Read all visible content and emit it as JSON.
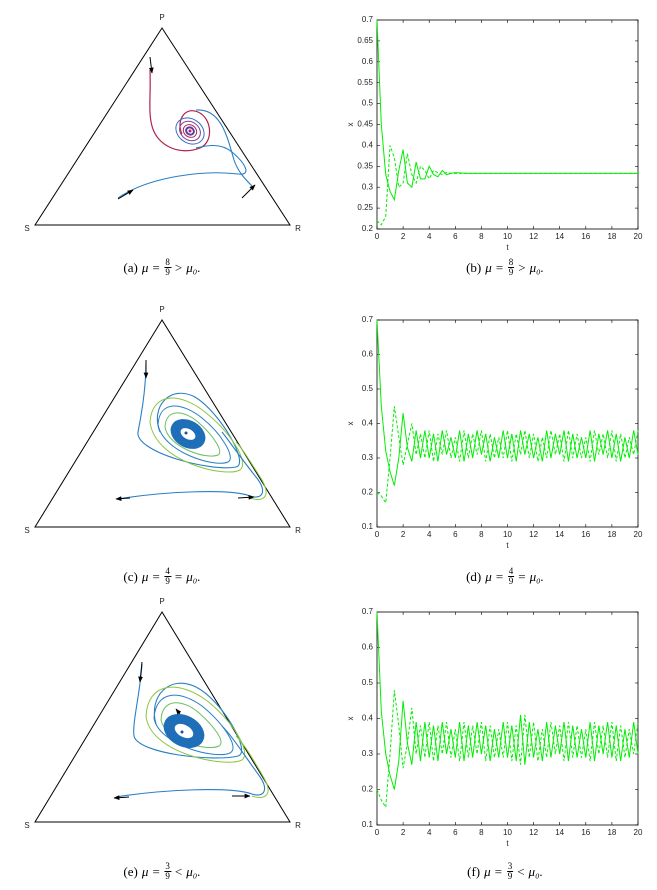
{
  "ternary": [
    {
      "top": "P",
      "left": "S",
      "right": "R"
    },
    {
      "top": "P",
      "left": "S",
      "right": "R"
    },
    {
      "top": "P",
      "left": "S",
      "right": "R"
    }
  ],
  "captions": [
    {
      "label": "(a)",
      "lhs": "μ =",
      "num": "8",
      "den": "9",
      "rel": ">",
      "rhs": "μ₀."
    },
    {
      "label": "(b)",
      "lhs": "μ =",
      "num": "8",
      "den": "9",
      "rel": ">",
      "rhs": "μ₀."
    },
    {
      "label": "(c)",
      "lhs": "μ =",
      "num": "4",
      "den": "9",
      "rel": "=",
      "rhs": "μ₀."
    },
    {
      "label": "(d)",
      "lhs": "μ =",
      "num": "4",
      "den": "9",
      "rel": "=",
      "rhs": "μ₀."
    },
    {
      "label": "(e)",
      "lhs": "μ =",
      "num": "3",
      "den": "9",
      "rel": "<",
      "rhs": "μ₀."
    },
    {
      "label": "(f)",
      "lhs": "μ =",
      "num": "3",
      "den": "9",
      "rel": "<",
      "rhs": "μ₀."
    }
  ],
  "chart_data": [
    {
      "type": "line",
      "x_label": "t",
      "y_label": "x",
      "xlim": [
        0,
        20
      ],
      "ylim": [
        0.2,
        0.7
      ],
      "xticks": [
        0,
        2,
        4,
        6,
        8,
        10,
        12,
        14,
        16,
        18,
        20
      ],
      "yticks": [
        0.2,
        0.25,
        0.3,
        0.35,
        0.4,
        0.45,
        0.5,
        0.55,
        0.6,
        0.65,
        0.7
      ],
      "x": [
        0,
        0.33,
        0.67,
        1,
        1.33,
        1.67,
        2,
        2.33,
        2.67,
        3,
        3.33,
        3.67,
        4,
        4.33,
        4.67,
        5,
        5.33,
        5.67,
        6,
        7,
        8,
        10,
        12,
        14,
        16,
        18,
        20
      ],
      "series": [
        {
          "color": "#00ee00",
          "linestyle": "solid",
          "values": [
            0.7,
            0.45,
            0.33,
            0.29,
            0.27,
            0.34,
            0.39,
            0.31,
            0.3,
            0.36,
            0.32,
            0.32,
            0.35,
            0.33,
            0.325,
            0.34,
            0.33,
            0.333,
            0.335,
            0.333,
            0.333,
            0.333,
            0.333,
            0.333,
            0.333,
            0.333,
            0.333
          ]
        },
        {
          "color": "#00ee00",
          "linestyle": "dashed",
          "values": [
            0.22,
            0.21,
            0.23,
            0.4,
            0.37,
            0.3,
            0.31,
            0.38,
            0.33,
            0.31,
            0.35,
            0.34,
            0.32,
            0.34,
            0.335,
            0.33,
            0.335,
            0.333,
            0.333,
            0.333,
            0.333,
            0.333,
            0.333,
            0.333,
            0.333,
            0.333,
            0.333
          ]
        }
      ]
    },
    {
      "type": "line",
      "x_label": "t",
      "y_label": "x",
      "xlim": [
        0,
        20
      ],
      "ylim": [
        0.1,
        0.7
      ],
      "xticks": [
        0,
        2,
        4,
        6,
        8,
        10,
        12,
        14,
        16,
        18,
        20
      ],
      "yticks": [
        0.1,
        0.2,
        0.3,
        0.4,
        0.5,
        0.6,
        0.7
      ],
      "x": [
        0,
        0.33,
        0.67,
        1,
        1.33,
        1.67,
        2,
        2.33,
        2.67,
        3,
        3.33,
        3.67,
        4,
        4.33,
        4.67,
        5,
        5.33,
        5.67,
        6,
        6.33,
        6.67,
        7,
        7.33,
        7.67,
        8,
        8.33,
        8.67,
        9,
        9.33,
        9.67,
        10,
        10.33,
        10.67,
        11,
        11.33,
        11.67,
        12,
        12.33,
        12.67,
        13,
        13.33,
        13.67,
        14,
        14.33,
        14.67,
        15,
        15.33,
        15.67,
        16,
        16.33,
        16.67,
        17,
        17.33,
        17.67,
        18,
        18.33,
        18.67,
        19,
        19.33,
        19.67,
        20
      ],
      "series": [
        {
          "color": "#00ee00",
          "linestyle": "solid",
          "values": [
            0.7,
            0.45,
            0.32,
            0.26,
            0.22,
            0.3,
            0.43,
            0.33,
            0.29,
            0.38,
            0.3,
            0.38,
            0.3,
            0.37,
            0.29,
            0.38,
            0.31,
            0.36,
            0.3,
            0.38,
            0.29,
            0.37,
            0.3,
            0.38,
            0.31,
            0.37,
            0.29,
            0.36,
            0.3,
            0.38,
            0.3,
            0.37,
            0.29,
            0.38,
            0.31,
            0.37,
            0.3,
            0.36,
            0.29,
            0.38,
            0.3,
            0.37,
            0.31,
            0.38,
            0.29,
            0.37,
            0.3,
            0.36,
            0.3,
            0.38,
            0.29,
            0.37,
            0.31,
            0.38,
            0.3,
            0.37,
            0.29,
            0.36,
            0.3,
            0.38,
            0.31
          ]
        },
        {
          "color": "#00ee00",
          "linestyle": "dashed",
          "values": [
            0.2,
            0.19,
            0.17,
            0.3,
            0.45,
            0.36,
            0.28,
            0.34,
            0.4,
            0.31,
            0.37,
            0.3,
            0.38,
            0.29,
            0.37,
            0.31,
            0.38,
            0.3,
            0.36,
            0.29,
            0.38,
            0.3,
            0.37,
            0.31,
            0.38,
            0.29,
            0.37,
            0.3,
            0.36,
            0.3,
            0.38,
            0.29,
            0.37,
            0.31,
            0.38,
            0.3,
            0.37,
            0.29,
            0.36,
            0.3,
            0.38,
            0.31,
            0.37,
            0.29,
            0.38,
            0.3,
            0.37,
            0.3,
            0.36,
            0.29,
            0.38,
            0.31,
            0.37,
            0.3,
            0.38,
            0.29,
            0.37,
            0.3,
            0.36,
            0.31,
            0.38
          ]
        }
      ]
    },
    {
      "type": "line",
      "x_label": "t",
      "y_label": "x",
      "xlim": [
        0,
        20
      ],
      "ylim": [
        0.1,
        0.7
      ],
      "xticks": [
        0,
        2,
        4,
        6,
        8,
        10,
        12,
        14,
        16,
        18,
        20
      ],
      "yticks": [
        0.1,
        0.2,
        0.3,
        0.4,
        0.5,
        0.6,
        0.7
      ],
      "x": [
        0,
        0.33,
        0.67,
        1,
        1.33,
        1.67,
        2,
        2.33,
        2.67,
        3,
        3.33,
        3.67,
        4,
        4.33,
        4.67,
        5,
        5.33,
        5.67,
        6,
        6.33,
        6.67,
        7,
        7.33,
        7.67,
        8,
        8.33,
        8.67,
        9,
        9.33,
        9.67,
        10,
        10.33,
        10.67,
        11,
        11.33,
        11.67,
        12,
        12.33,
        12.67,
        13,
        13.33,
        13.67,
        14,
        14.33,
        14.67,
        15,
        15.33,
        15.67,
        16,
        16.33,
        16.67,
        17,
        17.33,
        17.67,
        18,
        18.33,
        18.67,
        19,
        19.33,
        19.67,
        20
      ],
      "series": [
        {
          "color": "#00ee00",
          "linestyle": "solid",
          "values": [
            0.7,
            0.42,
            0.3,
            0.24,
            0.2,
            0.28,
            0.45,
            0.33,
            0.27,
            0.39,
            0.28,
            0.39,
            0.29,
            0.38,
            0.28,
            0.39,
            0.3,
            0.37,
            0.29,
            0.39,
            0.28,
            0.38,
            0.29,
            0.39,
            0.3,
            0.38,
            0.28,
            0.37,
            0.29,
            0.39,
            0.29,
            0.38,
            0.28,
            0.41,
            0.27,
            0.39,
            0.29,
            0.37,
            0.28,
            0.39,
            0.29,
            0.38,
            0.3,
            0.39,
            0.28,
            0.38,
            0.29,
            0.37,
            0.29,
            0.39,
            0.28,
            0.38,
            0.3,
            0.39,
            0.29,
            0.38,
            0.28,
            0.37,
            0.29,
            0.39,
            0.3
          ]
        },
        {
          "color": "#00ee00",
          "linestyle": "dashed",
          "values": [
            0.2,
            0.17,
            0.15,
            0.3,
            0.48,
            0.38,
            0.26,
            0.33,
            0.43,
            0.3,
            0.38,
            0.29,
            0.39,
            0.28,
            0.38,
            0.3,
            0.39,
            0.29,
            0.37,
            0.28,
            0.39,
            0.29,
            0.38,
            0.3,
            0.39,
            0.28,
            0.38,
            0.29,
            0.37,
            0.29,
            0.39,
            0.28,
            0.38,
            0.27,
            0.41,
            0.29,
            0.39,
            0.28,
            0.37,
            0.29,
            0.39,
            0.3,
            0.38,
            0.28,
            0.39,
            0.29,
            0.38,
            0.29,
            0.37,
            0.28,
            0.39,
            0.3,
            0.38,
            0.29,
            0.39,
            0.28,
            0.38,
            0.29,
            0.37,
            0.3,
            0.39
          ]
        }
      ]
    }
  ]
}
